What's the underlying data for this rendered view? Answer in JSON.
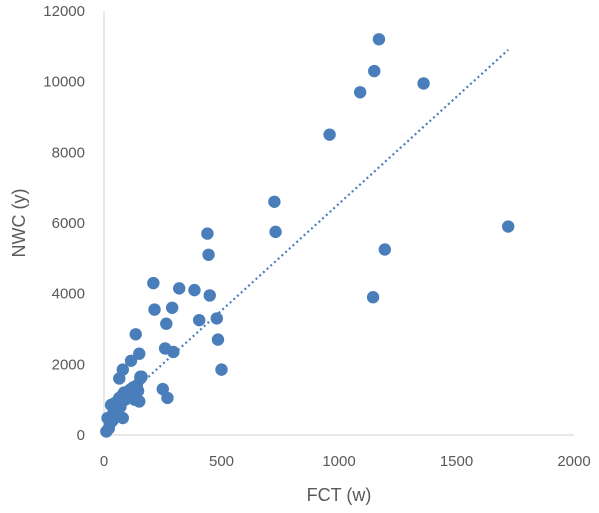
{
  "chart_data": {
    "type": "scatter",
    "xlabel": "FCT (w)",
    "ylabel": "NWC (y)",
    "xlim": [
      0,
      2000
    ],
    "ylim": [
      0,
      12000
    ],
    "xticks": [
      0,
      500,
      1000,
      1500,
      2000
    ],
    "yticks": [
      0,
      2000,
      4000,
      6000,
      8000,
      10000,
      12000
    ],
    "grid": false,
    "legend": "none",
    "marker_color": "#4A7EBB",
    "trendline": {
      "style": "dotted",
      "color": "#4A7EBB",
      "from": [
        0,
        500
      ],
      "to": [
        1720,
        10900
      ]
    },
    "series": [
      {
        "x": [
          10,
          15,
          20,
          25,
          30,
          35,
          40,
          45,
          50,
          55,
          60,
          65,
          70,
          75,
          80,
          85,
          90,
          95,
          100,
          105,
          110,
          115,
          120,
          125,
          130,
          135,
          140,
          145,
          150,
          155,
          160,
          65,
          80,
          115,
          135,
          150,
          155,
          210,
          215,
          250,
          260,
          265,
          270,
          290,
          295,
          320,
          385,
          405,
          440,
          445,
          450,
          480,
          485,
          500,
          725,
          730,
          960,
          1090,
          1145,
          1150,
          1170,
          1195,
          1360,
          1720
        ],
        "y": [
          100,
          480,
          180,
          320,
          850,
          400,
          620,
          900,
          750,
          520,
          980,
          1050,
          800,
          1100,
          480,
          1200,
          1000,
          1150,
          1050,
          1250,
          1100,
          1300,
          1200,
          1350,
          1000,
          1150,
          1400,
          1250,
          950,
          1600,
          1650,
          1600,
          1850,
          2100,
          2850,
          2300,
          1650,
          4300,
          3550,
          1300,
          2450,
          3150,
          1050,
          3600,
          2350,
          4150,
          4100,
          3250,
          5700,
          5100,
          3950,
          3300,
          2700,
          1850,
          6600,
          5750,
          8500,
          9700,
          3900,
          10300,
          11200,
          5250,
          9950,
          5900
        ]
      }
    ]
  }
}
